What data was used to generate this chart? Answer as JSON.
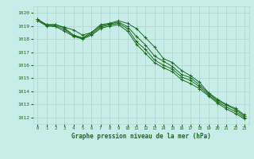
{
  "xlabel": "Graphe pression niveau de la mer (hPa)",
  "background_color": "#c8ece8",
  "grid_color": "#b0d8d0",
  "line_color": "#1a6b1a",
  "text_color": "#1a6b1a",
  "ylim": [
    1011.5,
    1020.5
  ],
  "xlim": [
    -0.5,
    23.5
  ],
  "yticks": [
    1012,
    1013,
    1014,
    1015,
    1016,
    1017,
    1018,
    1019,
    1020
  ],
  "xticks": [
    0,
    1,
    2,
    3,
    4,
    5,
    6,
    7,
    8,
    9,
    10,
    11,
    12,
    13,
    14,
    15,
    16,
    17,
    18,
    19,
    20,
    21,
    22,
    23
  ],
  "series": [
    [
      1019.5,
      1019.1,
      1019.1,
      1018.9,
      1018.7,
      1018.3,
      1018.5,
      1019.1,
      1019.2,
      1019.4,
      1019.2,
      1018.8,
      1018.1,
      1017.4,
      1016.5,
      1016.2,
      1015.6,
      1015.2,
      1014.7,
      1013.9,
      1013.4,
      1013.0,
      1012.7,
      1012.2
    ],
    [
      1019.5,
      1019.1,
      1019.1,
      1018.85,
      1018.3,
      1018.1,
      1018.5,
      1019.0,
      1019.15,
      1019.3,
      1018.95,
      1018.2,
      1017.55,
      1016.7,
      1016.3,
      1015.9,
      1015.3,
      1015.05,
      1014.5,
      1013.85,
      1013.3,
      1012.95,
      1012.6,
      1012.1
    ],
    [
      1019.5,
      1019.05,
      1019.0,
      1018.75,
      1018.25,
      1018.05,
      1018.4,
      1018.9,
      1019.1,
      1019.2,
      1018.8,
      1017.8,
      1017.2,
      1016.4,
      1016.0,
      1015.7,
      1015.1,
      1014.85,
      1014.35,
      1013.75,
      1013.2,
      1012.8,
      1012.45,
      1012.0
    ],
    [
      1019.4,
      1019.0,
      1018.95,
      1018.6,
      1018.2,
      1018.0,
      1018.3,
      1018.8,
      1019.0,
      1019.1,
      1018.6,
      1017.6,
      1016.9,
      1016.2,
      1015.8,
      1015.5,
      1014.9,
      1014.6,
      1014.2,
      1013.65,
      1013.1,
      1012.65,
      1012.3,
      1011.9
    ]
  ]
}
